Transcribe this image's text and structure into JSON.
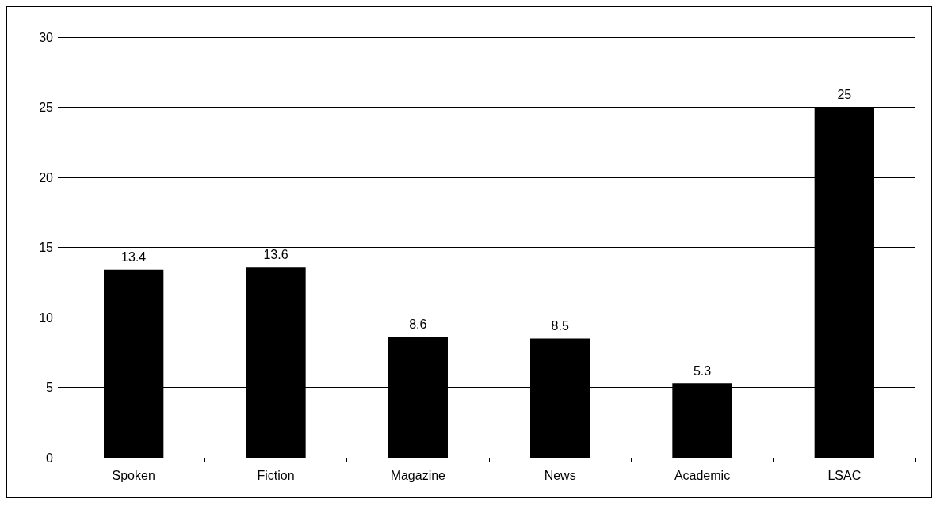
{
  "chart_data": {
    "type": "bar",
    "categories": [
      "Spoken",
      "Fiction",
      "Magazine",
      "News",
      "Academic",
      "LSAC"
    ],
    "values": [
      13.4,
      13.6,
      8.6,
      8.5,
      5.3,
      25
    ],
    "color": "#000000",
    "ylim": [
      0,
      30
    ],
    "yticks": [
      0,
      5,
      10,
      15,
      20,
      25,
      30
    ],
    "grid": "y",
    "data_labels": true
  }
}
